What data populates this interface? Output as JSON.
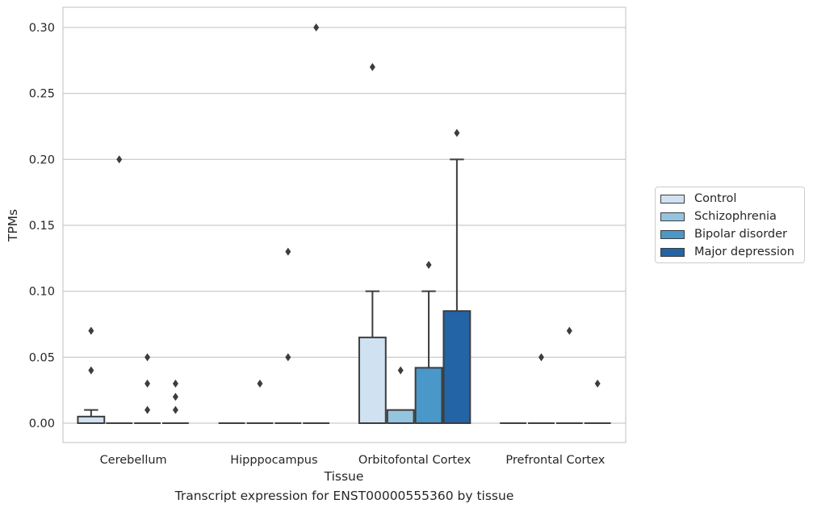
{
  "chart_data": {
    "type": "box",
    "title": "Transcript expression for ENST00000555360 by tissue",
    "xlabel": "Tissue",
    "ylabel": "TPMs",
    "ylim": [
      -0.015,
      0.315
    ],
    "yticks": [
      "0.00",
      "0.05",
      "0.10",
      "0.15",
      "0.20",
      "0.25",
      "0.30"
    ],
    "categories": [
      "Cerebellum",
      "Hipppocampus",
      "Orbitofontal Cortex",
      "Prefrontal Cortex"
    ],
    "grid": true,
    "legend_position": "right",
    "series": [
      {
        "name": "Control",
        "color": "#d0e1f2",
        "boxes": [
          {
            "q1": 0.0,
            "median": 0.0,
            "q3": 0.005,
            "whisker_low": 0.0,
            "whisker_high": 0.01,
            "outliers": [
              0.04,
              0.07
            ]
          },
          {
            "q1": 0.0,
            "median": 0.0,
            "q3": 0.0,
            "whisker_low": 0.0,
            "whisker_high": 0.0,
            "outliers": []
          },
          {
            "q1": 0.0,
            "median": 0.0,
            "q3": 0.065,
            "whisker_low": 0.0,
            "whisker_high": 0.1,
            "outliers": [
              0.27
            ]
          },
          {
            "q1": 0.0,
            "median": 0.0,
            "q3": 0.0,
            "whisker_low": 0.0,
            "whisker_high": 0.0,
            "outliers": []
          }
        ]
      },
      {
        "name": "Schizophrenia",
        "color": "#94c4df",
        "boxes": [
          {
            "q1": 0.0,
            "median": 0.0,
            "q3": 0.0,
            "whisker_low": 0.0,
            "whisker_high": 0.0,
            "outliers": [
              0.2
            ]
          },
          {
            "q1": 0.0,
            "median": 0.0,
            "q3": 0.0,
            "whisker_low": 0.0,
            "whisker_high": 0.0,
            "outliers": [
              0.03
            ]
          },
          {
            "q1": 0.0,
            "median": 0.0,
            "q3": 0.01,
            "whisker_low": 0.0,
            "whisker_high": 0.01,
            "outliers": [
              0.04
            ]
          },
          {
            "q1": 0.0,
            "median": 0.0,
            "q3": 0.0,
            "whisker_low": 0.0,
            "whisker_high": 0.0,
            "outliers": [
              0.05
            ]
          }
        ]
      },
      {
        "name": "Bipolar disorder",
        "color": "#4a98c9",
        "boxes": [
          {
            "q1": 0.0,
            "median": 0.0,
            "q3": 0.0,
            "whisker_low": 0.0,
            "whisker_high": 0.0,
            "outliers": [
              0.01,
              0.03,
              0.05
            ]
          },
          {
            "q1": 0.0,
            "median": 0.0,
            "q3": 0.0,
            "whisker_low": 0.0,
            "whisker_high": 0.0,
            "outliers": [
              0.05,
              0.13
            ]
          },
          {
            "q1": 0.0,
            "median": 0.0,
            "q3": 0.042,
            "whisker_low": 0.0,
            "whisker_high": 0.1,
            "outliers": [
              0.12
            ]
          },
          {
            "q1": 0.0,
            "median": 0.0,
            "q3": 0.0,
            "whisker_low": 0.0,
            "whisker_high": 0.0,
            "outliers": [
              0.07
            ]
          }
        ]
      },
      {
        "name": "Major depression",
        "color": "#2264a5",
        "boxes": [
          {
            "q1": 0.0,
            "median": 0.0,
            "q3": 0.0,
            "whisker_low": 0.0,
            "whisker_high": 0.0,
            "outliers": [
              0.01,
              0.02,
              0.03
            ]
          },
          {
            "q1": 0.0,
            "median": 0.0,
            "q3": 0.0,
            "whisker_low": 0.0,
            "whisker_high": 0.0,
            "outliers": [
              0.3
            ]
          },
          {
            "q1": 0.0,
            "median": 0.0,
            "q3": 0.085,
            "whisker_low": 0.0,
            "whisker_high": 0.2,
            "outliers": [
              0.22
            ]
          },
          {
            "q1": 0.0,
            "median": 0.0,
            "q3": 0.0,
            "whisker_low": 0.0,
            "whisker_high": 0.0,
            "outliers": [
              0.03
            ]
          }
        ]
      }
    ]
  }
}
